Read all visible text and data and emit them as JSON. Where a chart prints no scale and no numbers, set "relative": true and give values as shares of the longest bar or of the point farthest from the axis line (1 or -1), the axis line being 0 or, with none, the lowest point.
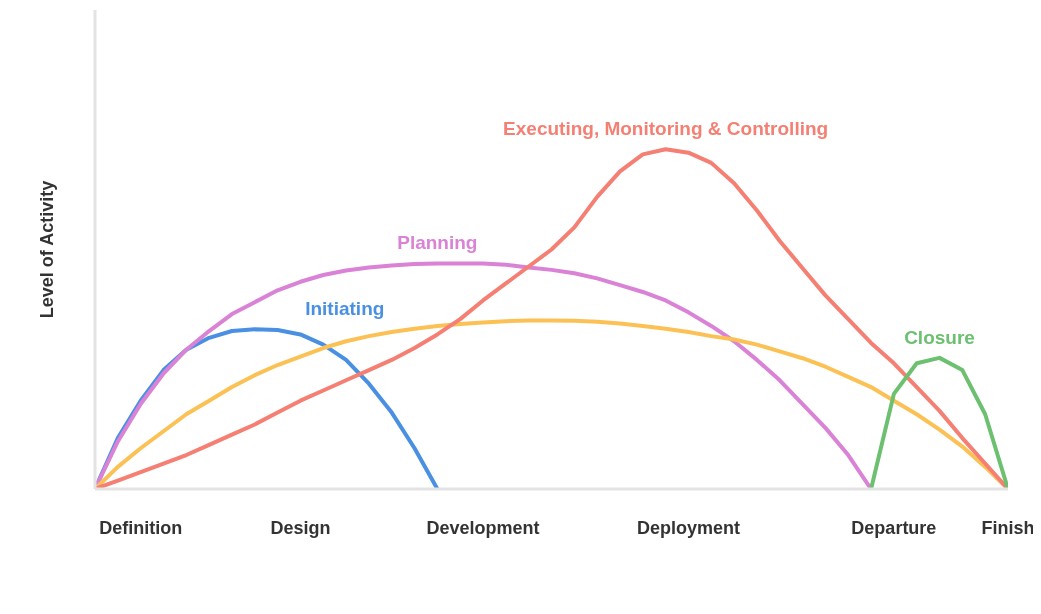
{
  "chart_data": {
    "type": "line",
    "relative": true,
    "ylabel": "Level of Activity",
    "categories": [
      null,
      null,
      "Definition",
      null,
      null,
      null,
      null,
      null,
      null,
      "Design",
      null,
      null,
      null,
      null,
      null,
      null,
      null,
      "Development",
      null,
      null,
      null,
      null,
      null,
      null,
      null,
      null,
      "Deployment",
      null,
      null,
      null,
      null,
      null,
      null,
      null,
      null,
      "Departure",
      null,
      null,
      null,
      null,
      "Finish"
    ],
    "grid": false,
    "legend": false,
    "marker": "none",
    "line_style": "solid",
    "series": [
      {
        "name": "Initiating",
        "color": "#4a90e2",
        "values": [
          0,
          0.15,
          0.26,
          0.35,
          0.41,
          0.445,
          0.465,
          0.47,
          0.468,
          0.455,
          0.425,
          0.38,
          0.31,
          0.225,
          0.12,
          0,
          null,
          null,
          null,
          null,
          null,
          null,
          null,
          null,
          null,
          null,
          null,
          null,
          null,
          null,
          null,
          null,
          null,
          null,
          null,
          null,
          null,
          null,
          null,
          null,
          null
        ]
      },
      {
        "name": "Planning",
        "color": "#d982d6",
        "values": [
          0,
          0.14,
          0.25,
          0.34,
          0.41,
          0.465,
          0.515,
          0.55,
          0.585,
          0.61,
          0.63,
          0.643,
          0.652,
          0.658,
          0.662,
          0.664,
          0.664,
          0.664,
          0.66,
          0.652,
          0.645,
          0.635,
          0.62,
          0.6,
          0.58,
          0.555,
          0.52,
          0.48,
          0.435,
          0.38,
          0.32,
          0.25,
          0.18,
          0.1,
          0,
          null,
          null,
          null,
          null,
          null,
          null
        ]
      },
      {
        "color": "#fbc155",
        "values": [
          0,
          0.065,
          0.12,
          0.17,
          0.22,
          0.26,
          0.3,
          0.335,
          0.365,
          0.39,
          0.415,
          0.435,
          0.45,
          0.462,
          0.472,
          0.48,
          0.486,
          0.49,
          0.494,
          0.496,
          0.496,
          0.495,
          0.492,
          0.487,
          0.48,
          0.472,
          0.462,
          0.45,
          0.44,
          0.425,
          0.405,
          0.385,
          0.36,
          0.33,
          0.3,
          0.26,
          0.22,
          0.175,
          0.125,
          0.065,
          0
        ]
      },
      {
        "name": "Executing, Monitoring & Controlling",
        "color": "#f47f72",
        "values": [
          0,
          0.025,
          0.05,
          0.075,
          0.1,
          0.13,
          0.16,
          0.19,
          0.225,
          0.26,
          0.29,
          0.32,
          0.35,
          0.38,
          0.415,
          0.455,
          0.5,
          0.555,
          0.605,
          0.655,
          0.705,
          0.77,
          0.86,
          0.935,
          0.985,
          1,
          0.99,
          0.96,
          0.9,
          0.82,
          0.73,
          0.65,
          0.57,
          0.5,
          0.43,
          0.37,
          0.3,
          0.23,
          0.15,
          0.075,
          0
        ]
      },
      {
        "name": "Closure",
        "color": "#6cc070",
        "values": [
          null,
          null,
          null,
          null,
          null,
          null,
          null,
          null,
          null,
          null,
          null,
          null,
          null,
          null,
          null,
          null,
          null,
          null,
          null,
          null,
          null,
          null,
          null,
          null,
          null,
          null,
          null,
          null,
          null,
          null,
          null,
          null,
          null,
          null,
          0,
          0.28,
          0.37,
          0.386,
          0.35,
          0.22,
          0
        ]
      }
    ]
  }
}
